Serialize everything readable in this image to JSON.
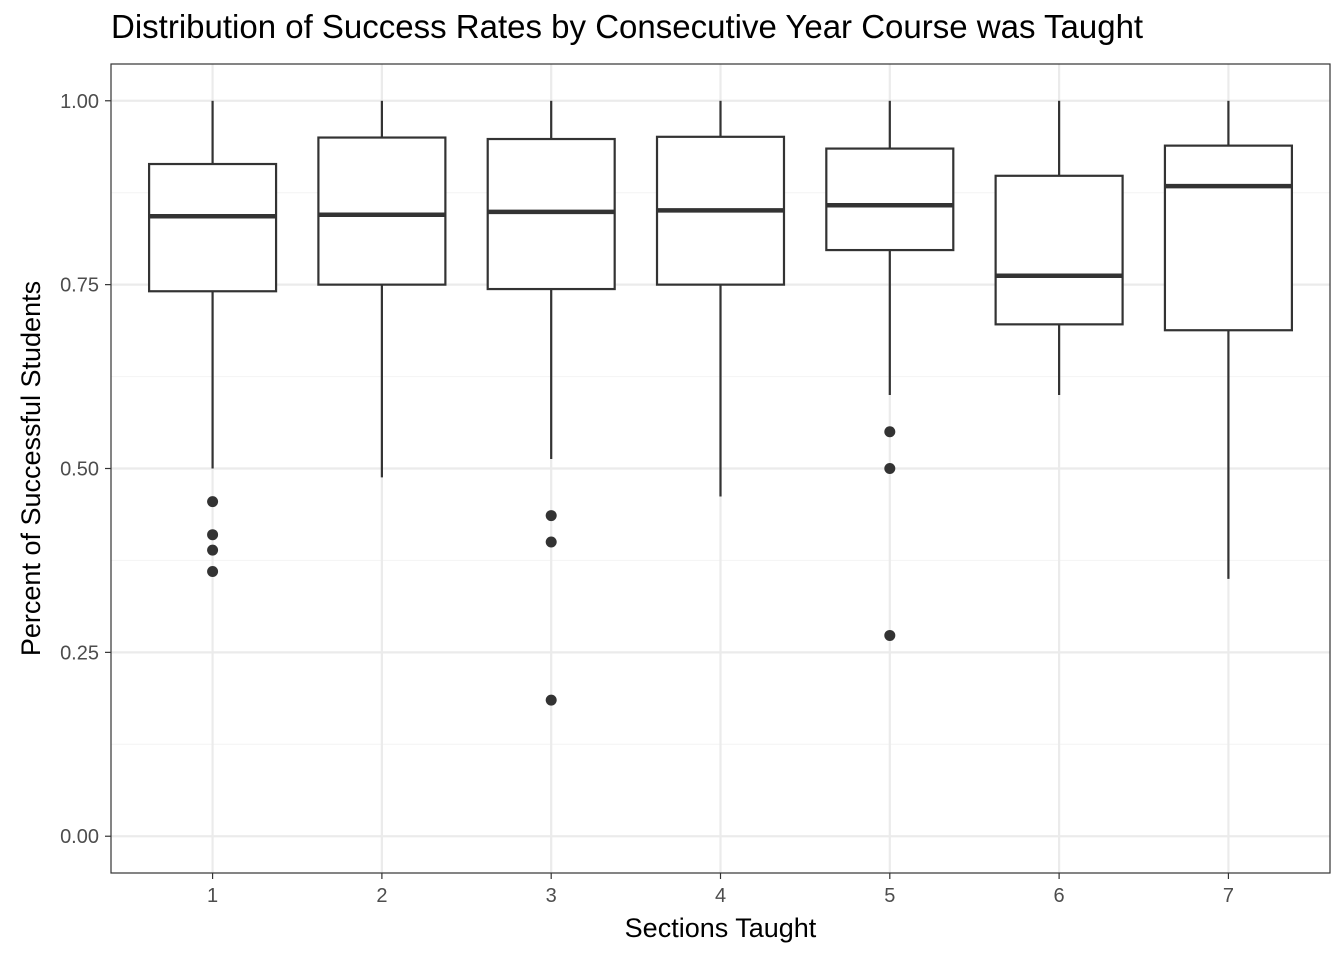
{
  "chart_data": {
    "type": "box",
    "title": "Distribution of Success Rates by Consecutive Year Course was Taught",
    "xlabel": "Sections Taught",
    "ylabel": "Percent of Successful Students",
    "categories": [
      "1",
      "2",
      "3",
      "4",
      "5",
      "6",
      "7"
    ],
    "ylim": [
      -0.05,
      1.05
    ],
    "yticks": [
      0.0,
      0.25,
      0.5,
      0.75,
      1.0
    ],
    "ytick_labels": [
      "0.00",
      "0.25",
      "0.50",
      "0.75",
      "1.00"
    ],
    "grid": true,
    "theme": "bw",
    "boxes": [
      {
        "category": "1",
        "whisker_low": 0.5,
        "q1": 0.741,
        "median": 0.843,
        "q3": 0.914,
        "whisker_high": 1.0,
        "outliers": [
          0.455,
          0.41,
          0.389,
          0.36
        ]
      },
      {
        "category": "2",
        "whisker_low": 0.488,
        "q1": 0.75,
        "median": 0.845,
        "q3": 0.95,
        "whisker_high": 1.0,
        "outliers": []
      },
      {
        "category": "3",
        "whisker_low": 0.513,
        "q1": 0.744,
        "median": 0.849,
        "q3": 0.948,
        "whisker_high": 1.0,
        "outliers": [
          0.436,
          0.4,
          0.185
        ]
      },
      {
        "category": "4",
        "whisker_low": 0.462,
        "q1": 0.75,
        "median": 0.851,
        "q3": 0.951,
        "whisker_high": 1.0,
        "outliers": []
      },
      {
        "category": "5",
        "whisker_low": 0.6,
        "q1": 0.797,
        "median": 0.858,
        "q3": 0.935,
        "whisker_high": 1.0,
        "outliers": [
          0.55,
          0.5,
          0.273
        ]
      },
      {
        "category": "6",
        "whisker_low": 0.6,
        "q1": 0.696,
        "median": 0.762,
        "q3": 0.898,
        "whisker_high": 1.0,
        "outliers": []
      },
      {
        "category": "7",
        "whisker_low": 0.35,
        "q1": 0.688,
        "median": 0.884,
        "q3": 0.939,
        "whisker_high": 1.0,
        "outliers": []
      }
    ],
    "colors": {
      "box_stroke": "#333333",
      "box_fill": "#ffffff",
      "outlier": "#333333",
      "panel_border": "#333333",
      "grid_major": "#ebebeb",
      "grid_minor": "#f5f5f5",
      "tick_text": "#4d4d4d"
    }
  }
}
